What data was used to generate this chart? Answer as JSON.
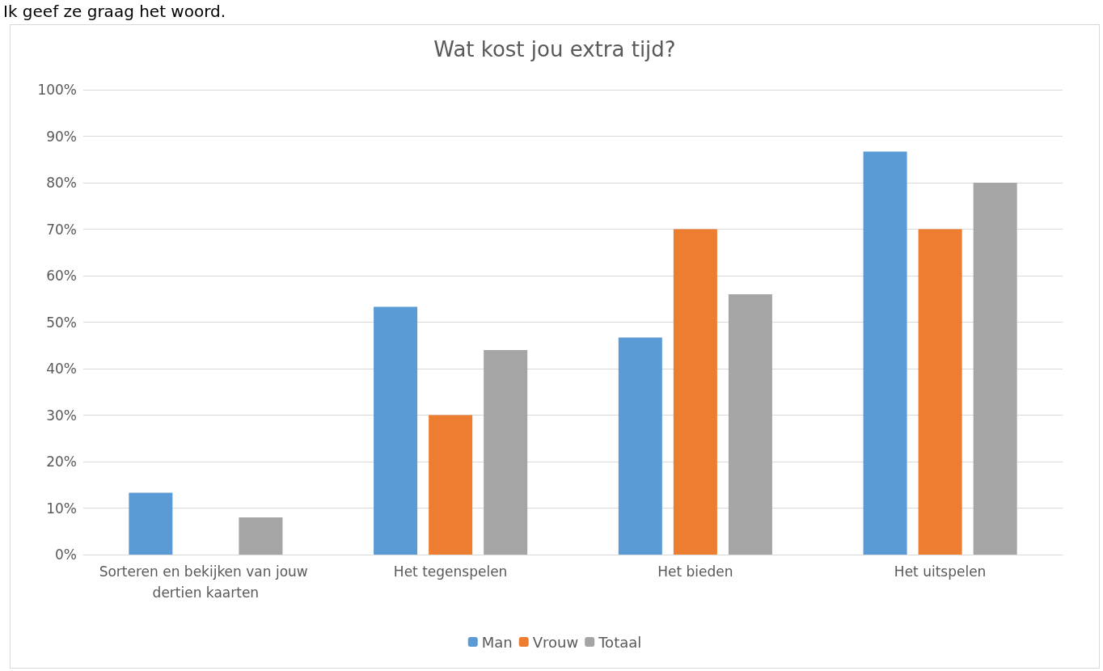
{
  "chart_data": {
    "type": "bar",
    "title": "Wat kost jou extra tijd?",
    "annotations": [
      "Ik geef ze graag het woord."
    ],
    "categories": [
      "Sorteren en bekijken van jouw dertien kaarten",
      "Het tegenspelen",
      "Het bieden",
      "Het uitspelen"
    ],
    "series": [
      {
        "name": "Man",
        "color": "#5b9bd5",
        "values": [
          13.3,
          53.3,
          46.7,
          86.7
        ]
      },
      {
        "name": "Vrouw",
        "color": "#ed7d31",
        "values": [
          0,
          30,
          70,
          70
        ]
      },
      {
        "name": "Totaal",
        "color": "#a5a5a5",
        "values": [
          8,
          44,
          56,
          80
        ]
      }
    ],
    "ylim": [
      0,
      100
    ],
    "yticks": [
      {
        "value": 0,
        "label": "0%"
      },
      {
        "value": 10,
        "label": "10%"
      },
      {
        "value": 20,
        "label": "20%"
      },
      {
        "value": 30,
        "label": "30%"
      },
      {
        "value": 40,
        "label": "40%"
      },
      {
        "value": 50,
        "label": "50%"
      },
      {
        "value": 60,
        "label": "60%"
      },
      {
        "value": 70,
        "label": "70%"
      },
      {
        "value": 80,
        "label": "80%"
      },
      {
        "value": 90,
        "label": "90%"
      },
      {
        "value": 100,
        "label": "100%"
      }
    ],
    "grid": "y",
    "legend": "bottom"
  }
}
